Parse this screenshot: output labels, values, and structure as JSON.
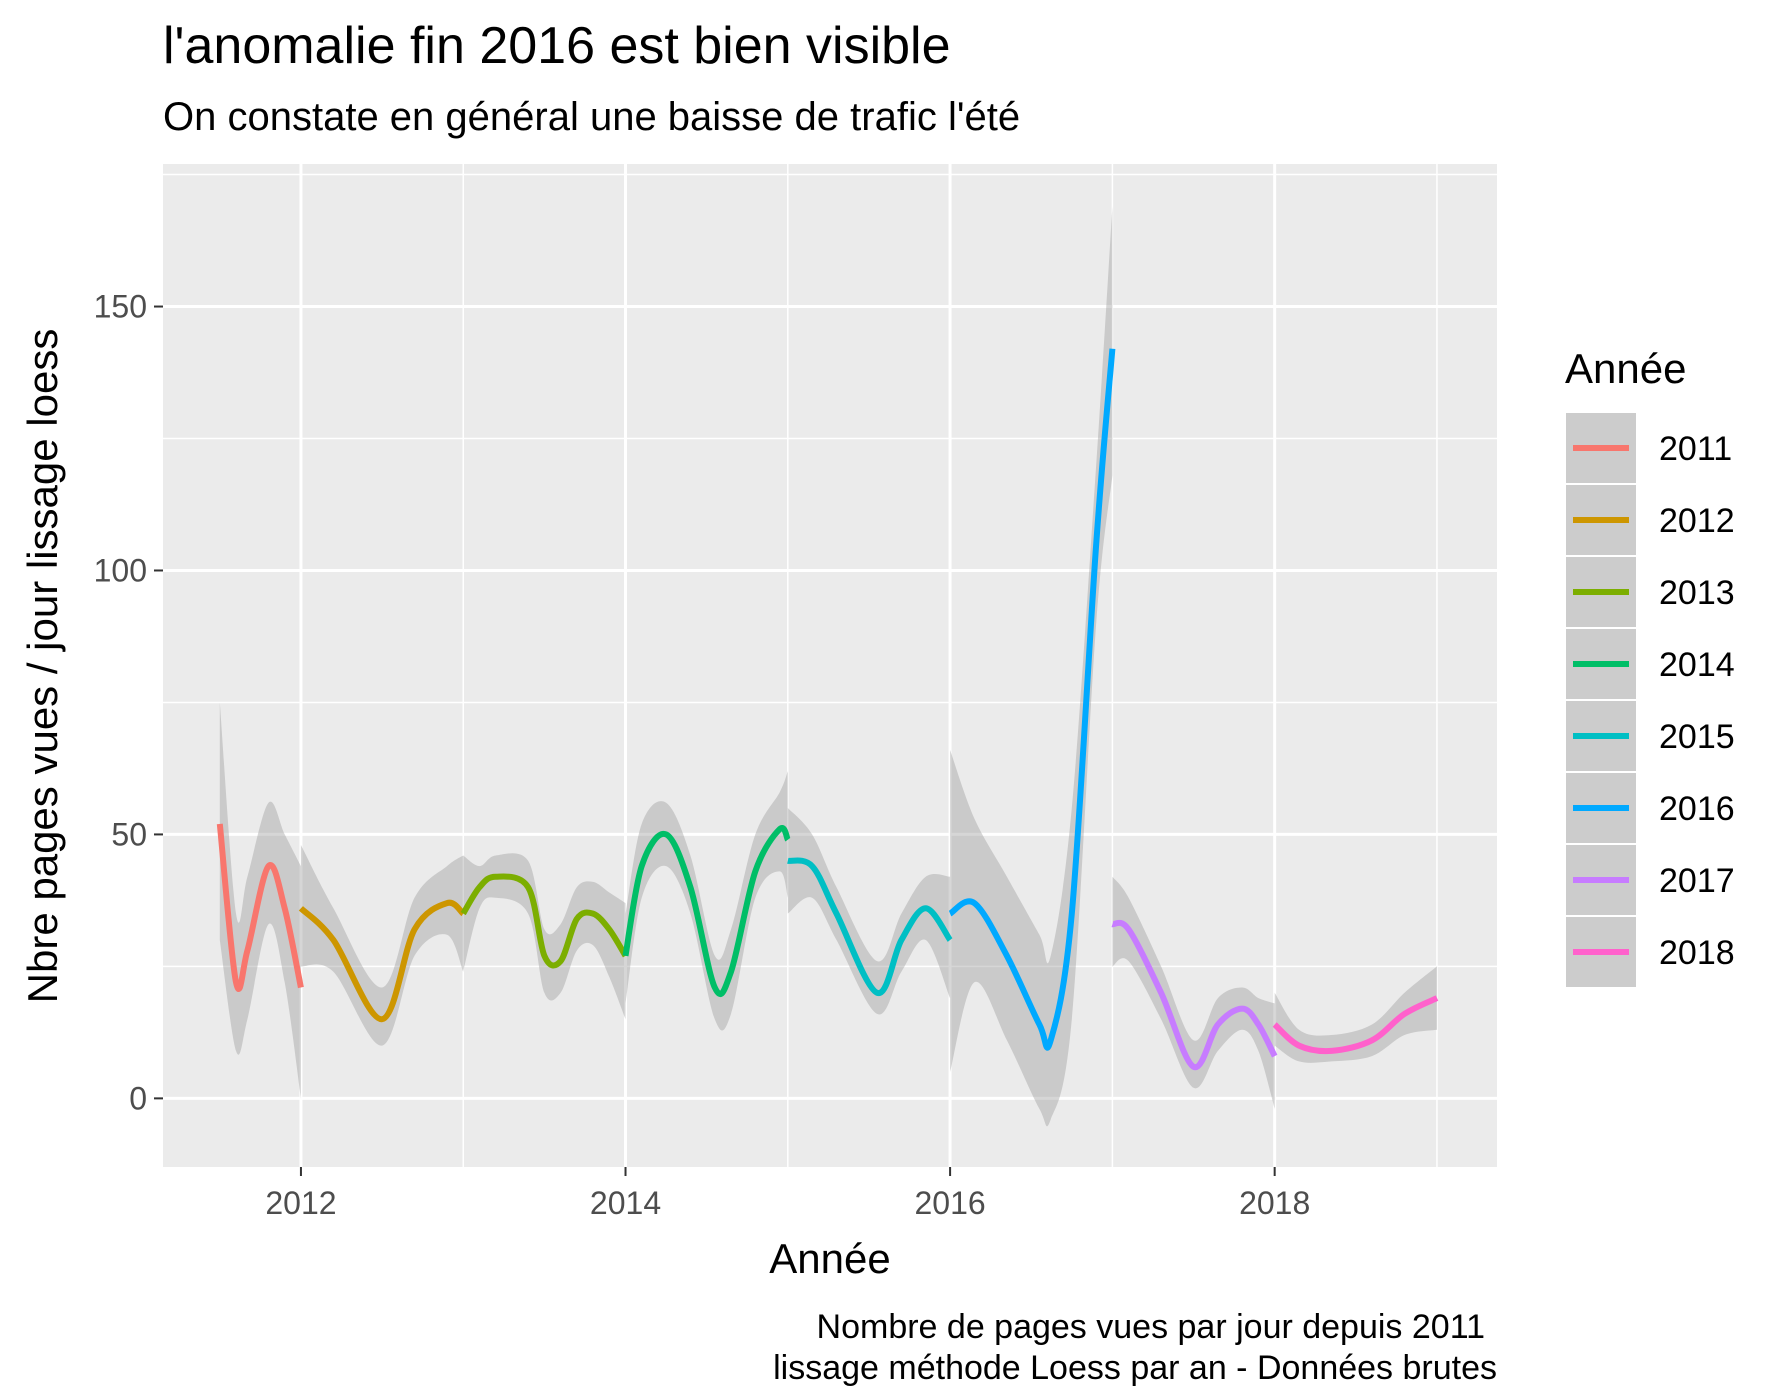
{
  "chart_data": {
    "type": "line",
    "title": "l'anomalie fin 2016 est bien visible",
    "subtitle": "On constate en général une baisse de trafic l'été",
    "xlabel": "Année",
    "ylabel": "Nbre pages vues / jour lissage loess",
    "caption": [
      "Nombre de pages vues par jour depuis 2011",
      "lissage méthode Loess par an - Données brutes"
    ],
    "xlim": [
      2011.15,
      2019.37
    ],
    "ylim": [
      -13,
      177
    ],
    "x_ticks": [
      2012,
      2014,
      2016,
      2018
    ],
    "x_tick_labels": [
      "2012",
      "2014",
      "2016",
      "2018"
    ],
    "y_ticks": [
      0,
      50,
      100,
      150
    ],
    "y_tick_labels": [
      "0",
      "50",
      "100",
      "150"
    ],
    "grid": true,
    "legend": {
      "title": "Année",
      "position": "right"
    },
    "series": [
      {
        "name": "2011",
        "color": "#F8766D",
        "x": [
          2011.5,
          2011.6,
          2011.67,
          2011.8,
          2011.9,
          2012.0
        ],
        "y": [
          52,
          22,
          28,
          44,
          36,
          21
        ],
        "lower": [
          30,
          9,
          15,
          33,
          22,
          0
        ],
        "upper": [
          75,
          35,
          42,
          56,
          50,
          44
        ]
      },
      {
        "name": "2012",
        "color": "#CD9600",
        "x": [
          2012.0,
          2012.2,
          2012.5,
          2012.7,
          2012.9,
          2013.0
        ],
        "y": [
          36,
          30,
          15,
          32,
          37,
          35
        ],
        "lower": [
          25,
          24,
          10,
          27,
          31,
          24
        ],
        "upper": [
          48,
          36,
          21,
          38,
          44,
          46
        ]
      },
      {
        "name": "2013",
        "color": "#7CAE00",
        "x": [
          2013.0,
          2013.1,
          2013.2,
          2013.4,
          2013.5,
          2013.6,
          2013.7,
          2013.8,
          2013.9,
          2014.0
        ],
        "y": [
          35,
          40,
          42,
          40,
          27,
          26,
          34,
          35,
          32,
          27
        ],
        "lower": [
          24,
          36,
          38,
          35,
          20,
          20,
          28,
          29,
          23,
          15
        ],
        "upper": [
          46,
          44,
          46,
          45,
          32,
          33,
          40,
          41,
          39,
          37
        ]
      },
      {
        "name": "2014",
        "color": "#00BE67",
        "x": [
          2014.0,
          2014.1,
          2014.25,
          2014.4,
          2014.55,
          2014.65,
          2014.8,
          2014.95,
          2015.0
        ],
        "y": [
          27,
          44,
          50,
          40,
          21,
          24,
          43,
          51,
          49
        ],
        "lower": [
          18,
          38,
          44,
          35,
          15,
          16,
          38,
          43,
          38
        ],
        "upper": [
          35,
          52,
          56,
          46,
          27,
          32,
          50,
          58,
          62
        ]
      },
      {
        "name": "2015",
        "color": "#00BFC4",
        "x": [
          2015.0,
          2015.15,
          2015.3,
          2015.55,
          2015.7,
          2015.85,
          2016.0
        ],
        "y": [
          45,
          44,
          35,
          20,
          30,
          36,
          30
        ],
        "lower": [
          35,
          38,
          30,
          16,
          24,
          30,
          19
        ],
        "upper": [
          55,
          50,
          40,
          26,
          35,
          42,
          42
        ]
      },
      {
        "name": "2016",
        "color": "#00A9FF",
        "x": [
          2016.0,
          2016.15,
          2016.35,
          2016.55,
          2016.62,
          2016.75,
          2016.9,
          2017.0
        ],
        "y": [
          35,
          37,
          27,
          14,
          11,
          35,
          105,
          142
        ],
        "lower": [
          5,
          22,
          11,
          -2,
          -4,
          15,
          90,
          118
        ],
        "upper": [
          66,
          53,
          42,
          31,
          27,
          55,
          120,
          169
        ]
      },
      {
        "name": "2017",
        "color": "#C77CFF",
        "x": [
          2017.0,
          2017.1,
          2017.3,
          2017.5,
          2017.65,
          2017.8,
          2017.9,
          2018.0
        ],
        "y": [
          33,
          32,
          20,
          6,
          14,
          17,
          14,
          8
        ],
        "lower": [
          25,
          26,
          15,
          2,
          9,
          13,
          9,
          -2
        ],
        "upper": [
          42,
          38,
          25,
          11,
          19,
          21,
          19,
          18
        ]
      },
      {
        "name": "2018",
        "color": "#FF61CC",
        "x": [
          2018.0,
          2018.15,
          2018.35,
          2018.6,
          2018.8,
          2019.0
        ],
        "y": [
          14,
          10,
          9,
          11,
          16,
          19
        ],
        "lower": [
          10,
          7,
          7,
          8,
          12,
          13
        ],
        "upper": [
          20,
          13,
          12,
          14,
          20,
          25
        ]
      }
    ]
  }
}
